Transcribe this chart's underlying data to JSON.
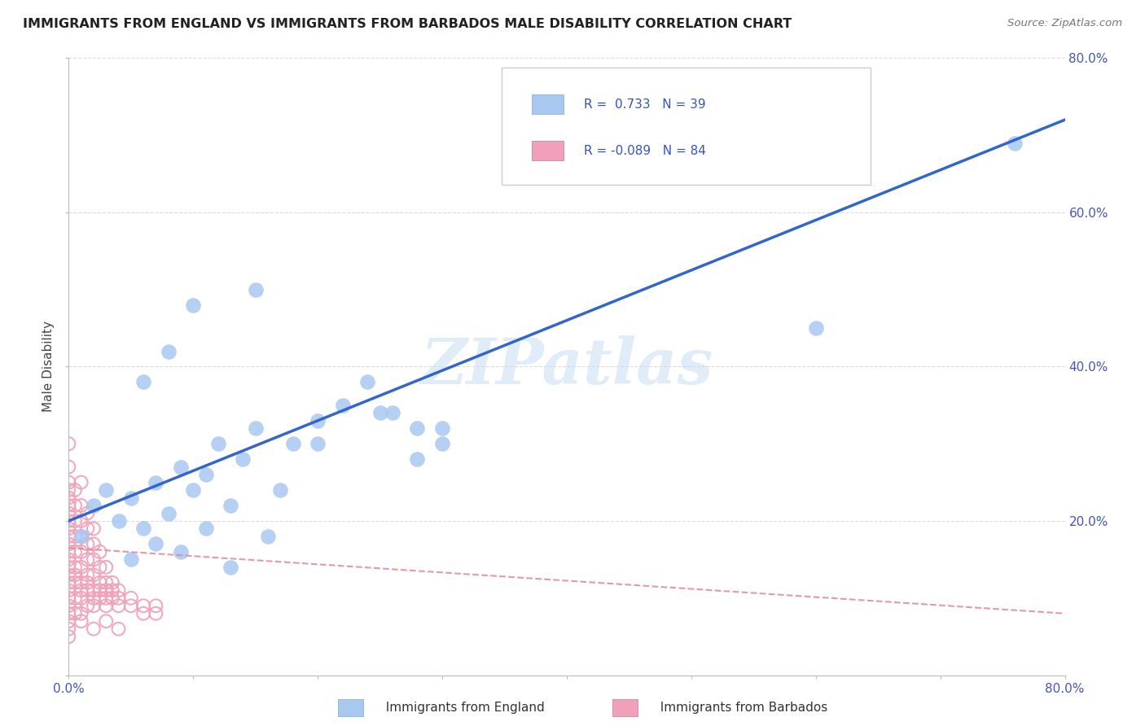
{
  "title": "IMMIGRANTS FROM ENGLAND VS IMMIGRANTS FROM BARBADOS MALE DISABILITY CORRELATION CHART",
  "source": "Source: ZipAtlas.com",
  "ylabel": "Male Disability",
  "watermark": "ZIPatlas",
  "xlim": [
    0.0,
    0.8
  ],
  "ylim": [
    0.0,
    0.8
  ],
  "england_color": "#a8c8f0",
  "england_edge_color": "#7aaae0",
  "barbados_color": "#f0a0b8",
  "barbados_edge_color": "#d070a0",
  "england_R": 0.733,
  "england_N": 39,
  "barbados_R": -0.089,
  "barbados_N": 84,
  "england_line_color": "#3366cc",
  "barbados_line_color": "#dd8899",
  "background_color": "#ffffff",
  "grid_color": "#cccccc",
  "england_x": [
    0.01,
    0.02,
    0.03,
    0.04,
    0.05,
    0.06,
    0.07,
    0.08,
    0.09,
    0.1,
    0.11,
    0.12,
    0.13,
    0.14,
    0.15,
    0.16,
    0.17,
    0.18,
    0.2,
    0.22,
    0.24,
    0.26,
    0.28,
    0.3,
    0.15,
    0.1,
    0.08,
    0.06,
    0.2,
    0.25,
    0.05,
    0.07,
    0.09,
    0.11,
    0.13,
    0.6,
    0.28,
    0.3,
    0.76
  ],
  "england_y": [
    0.18,
    0.22,
    0.24,
    0.2,
    0.23,
    0.19,
    0.25,
    0.21,
    0.27,
    0.24,
    0.26,
    0.3,
    0.22,
    0.28,
    0.32,
    0.18,
    0.24,
    0.3,
    0.33,
    0.35,
    0.38,
    0.34,
    0.28,
    0.32,
    0.5,
    0.48,
    0.42,
    0.38,
    0.3,
    0.34,
    0.15,
    0.17,
    0.16,
    0.19,
    0.14,
    0.45,
    0.32,
    0.3,
    0.69
  ],
  "barbados_x": [
    0.0,
    0.0,
    0.0,
    0.0,
    0.0,
    0.0,
    0.0,
    0.0,
    0.0,
    0.0,
    0.0,
    0.0,
    0.0,
    0.0,
    0.0,
    0.0,
    0.0,
    0.0,
    0.0,
    0.0,
    0.005,
    0.005,
    0.005,
    0.005,
    0.005,
    0.005,
    0.005,
    0.005,
    0.005,
    0.005,
    0.01,
    0.01,
    0.01,
    0.01,
    0.01,
    0.01,
    0.01,
    0.01,
    0.01,
    0.01,
    0.015,
    0.015,
    0.015,
    0.015,
    0.015,
    0.015,
    0.015,
    0.015,
    0.02,
    0.02,
    0.02,
    0.02,
    0.02,
    0.02,
    0.02,
    0.025,
    0.025,
    0.025,
    0.025,
    0.025,
    0.03,
    0.03,
    0.03,
    0.03,
    0.03,
    0.035,
    0.035,
    0.035,
    0.04,
    0.04,
    0.04,
    0.05,
    0.05,
    0.06,
    0.06,
    0.07,
    0.07,
    0.0,
    0.0,
    0.01,
    0.02,
    0.03,
    0.04,
    0.0
  ],
  "barbados_y": [
    0.08,
    0.09,
    0.1,
    0.11,
    0.12,
    0.13,
    0.14,
    0.15,
    0.16,
    0.17,
    0.18,
    0.19,
    0.2,
    0.21,
    0.22,
    0.23,
    0.24,
    0.25,
    0.27,
    0.3,
    0.08,
    0.1,
    0.12,
    0.14,
    0.16,
    0.18,
    0.2,
    0.22,
    0.24,
    0.13,
    0.08,
    0.1,
    0.12,
    0.14,
    0.16,
    0.18,
    0.2,
    0.22,
    0.25,
    0.11,
    0.09,
    0.11,
    0.13,
    0.15,
    0.17,
    0.19,
    0.21,
    0.12,
    0.09,
    0.11,
    0.13,
    0.15,
    0.17,
    0.19,
    0.1,
    0.1,
    0.12,
    0.14,
    0.16,
    0.11,
    0.1,
    0.12,
    0.14,
    0.11,
    0.09,
    0.1,
    0.12,
    0.11,
    0.09,
    0.11,
    0.1,
    0.09,
    0.1,
    0.08,
    0.09,
    0.08,
    0.09,
    0.07,
    0.06,
    0.07,
    0.06,
    0.07,
    0.06,
    0.05
  ]
}
